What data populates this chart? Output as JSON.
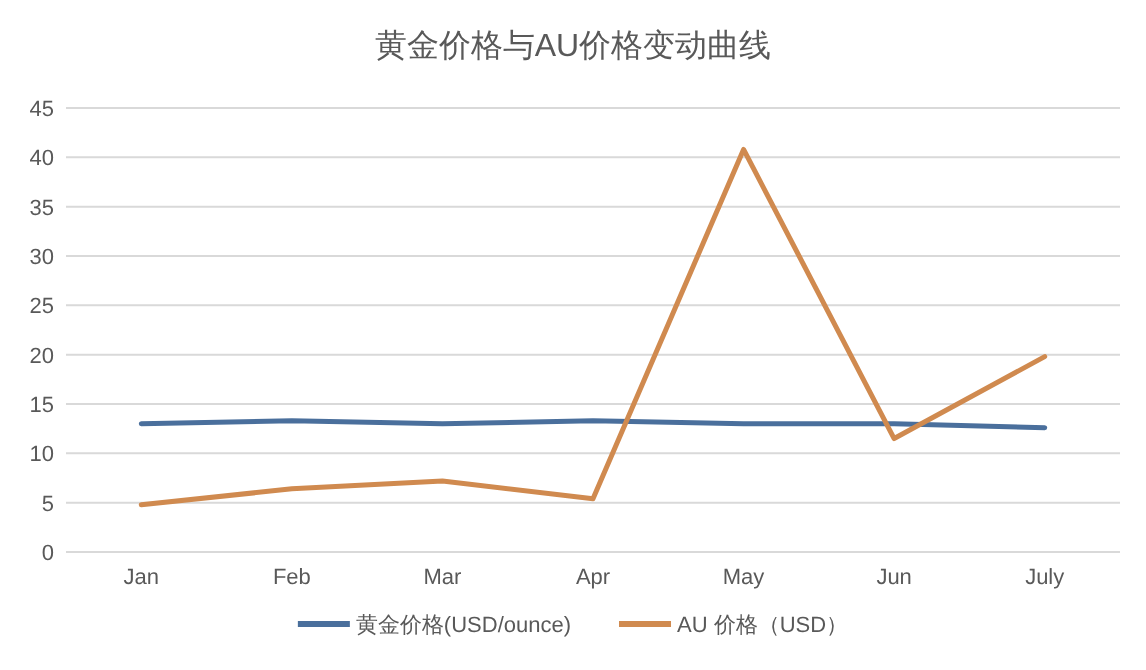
{
  "chart_data": {
    "type": "line",
    "title": "黄金价格与AU价格变动曲线",
    "categories": [
      "Jan",
      "Feb",
      "Mar",
      "Apr",
      "May",
      "Jun",
      "July"
    ],
    "series": [
      {
        "name": "黄金价格(USD/ounce)",
        "color": "#4a6f9c",
        "values": [
          13,
          13.3,
          13,
          13.3,
          13,
          13,
          12.6
        ]
      },
      {
        "name": "AU 价格（USD）",
        "color": "#d08a4f",
        "values": [
          4.8,
          6.4,
          7.2,
          5.4,
          40.8,
          11.5,
          19.8
        ]
      }
    ],
    "ylim": [
      0,
      45
    ],
    "yticks": [
      0,
      5,
      10,
      15,
      20,
      25,
      30,
      35,
      40,
      45
    ],
    "grid": "y",
    "legend": "bottom",
    "marker": "none",
    "line_style": "solid"
  }
}
